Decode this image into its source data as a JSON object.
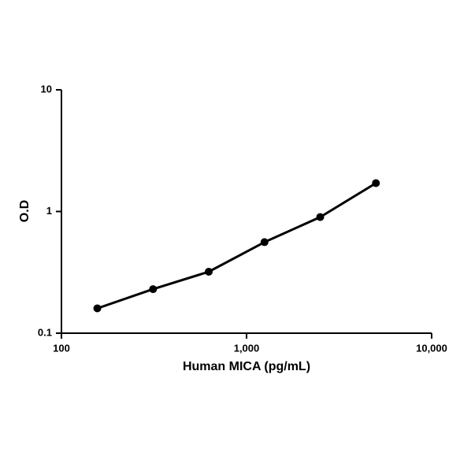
{
  "chart_data": {
    "type": "line",
    "xlabel": "Human MICA (pg/mL)",
    "ylabel": "O.D",
    "x": [
      156.25,
      312.5,
      625,
      1250,
      2500,
      5000
    ],
    "series": [
      {
        "color": "#000000",
        "values": [
          0.16,
          0.23,
          0.32,
          0.56,
          0.9,
          1.71
        ]
      }
    ],
    "xscale": "log",
    "yscale": "log",
    "xlim": [
      100,
      10000
    ],
    "ylim": [
      0.1,
      10
    ],
    "xticks": [
      100,
      {
        "value": 1000,
        "label": "1,000"
      },
      {
        "value": 10000,
        "label": "10,000"
      }
    ],
    "yticks": [
      0.1,
      1,
      10
    ],
    "grid": false
  }
}
